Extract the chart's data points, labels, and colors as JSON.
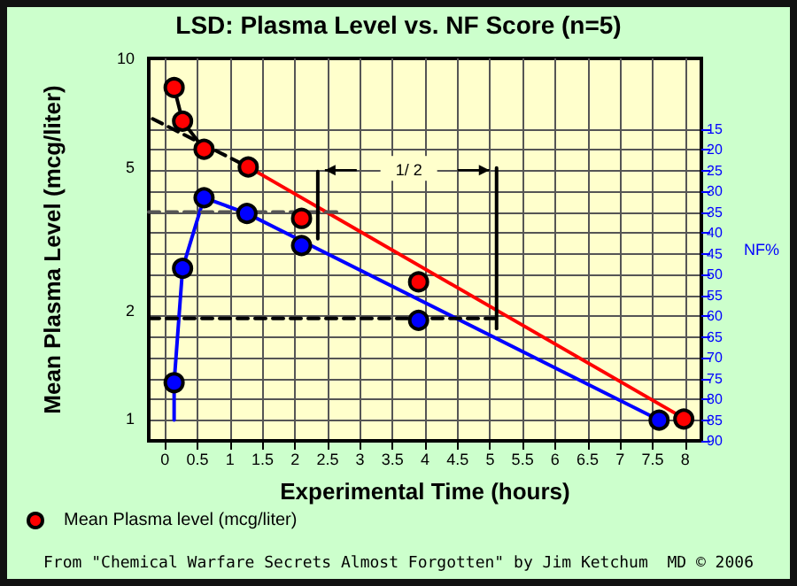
{
  "chart_data": {
    "type": "scatter",
    "title": "LSD: Plasma Level vs. NF Score (n=5)",
    "xlabel": "Experimental Time (hours)",
    "ylabel": "Mean Plasma Level (mcg/liter)",
    "y2label": "NF%",
    "xlim": [
      -0.25,
      8.25
    ],
    "xticks": [
      0,
      0.5,
      1,
      1.5,
      2,
      2.5,
      3,
      3.5,
      4,
      4.5,
      5,
      5.5,
      6,
      6.5,
      7,
      7.5,
      8
    ],
    "ylim": [
      0.87,
      10
    ],
    "yticks": [
      1,
      2,
      5,
      10
    ],
    "log": "y",
    "y2lim": [
      90,
      -2
    ],
    "y2ticks": [
      15,
      20,
      25,
      30,
      35,
      40,
      45,
      50,
      55,
      60,
      65,
      70,
      75,
      80,
      85,
      90
    ],
    "grid": true,
    "legend": "bottom left",
    "series": [
      {
        "name": "Mean Plasma level (mcg/liter)",
        "marker": "circle",
        "color": "#ff0000",
        "x": [
          0.14,
          0.27,
          0.6,
          1.28,
          2.1,
          3.9,
          7.98
        ],
        "values": [
          8.3,
          6.7,
          5.6,
          5.0,
          3.6,
          2.4,
          1.0
        ]
      },
      {
        "type": "line",
        "marker": "none",
        "line_style": "solid",
        "color": "#000000",
        "x": [
          0.14,
          0.27,
          0.6
        ],
        "values": [
          8.3,
          6.7,
          5.6
        ]
      },
      {
        "type": "line",
        "marker": "none",
        "line_style": "dashed",
        "color": "#000000",
        "x": [
          -0.19,
          1.28
        ],
        "values": [
          6.8,
          5.0
        ]
      },
      {
        "type": "line",
        "marker": "none",
        "line_style": "solid",
        "color": "#ff0000",
        "x": [
          1.28,
          8
        ],
        "values": [
          5.0,
          1.0
        ]
      },
      {
        "type": "line",
        "marker": "none",
        "line_style": "solid",
        "color": "#0000ff",
        "axis": "y2",
        "x": [
          0.14,
          0.14,
          0.27,
          0.6,
          1.26,
          7.6
        ],
        "values": [
          85,
          76,
          48.5,
          31.5,
          35.3,
          85
        ]
      },
      {
        "marker": "circle",
        "color": "#0000ff",
        "axis": "y2",
        "x": [
          0.14,
          0.27,
          0.6,
          1.26,
          2.1,
          3.9,
          7.6
        ],
        "values": [
          76,
          48.5,
          31.5,
          35.3,
          43,
          61,
          85
        ]
      },
      {
        "type": "line",
        "marker": "none",
        "line_style": "dashed",
        "color": "#555555",
        "x": [
          -0.25,
          2.7
        ],
        "values": [
          3.75,
          3.75
        ]
      },
      {
        "type": "line",
        "marker": "none",
        "line_style": "dashed",
        "color": "#000000",
        "x": [
          -0.25,
          5.1
        ],
        "values": [
          1.9,
          1.9
        ]
      },
      {
        "type": "line",
        "marker": "none",
        "line_style": "solid",
        "color": "#000000",
        "x": [
          2.35,
          2.35
        ],
        "values": [
          4.86,
          3.16
        ]
      },
      {
        "type": "line",
        "marker": "none",
        "line_style": "solid",
        "color": "#000000",
        "x": [
          5.1,
          5.1
        ],
        "values": [
          4.97,
          1.78
        ]
      }
    ],
    "annotations": [
      {
        "text": "1/ 2",
        "x": 3.75,
        "y": 4.9
      },
      "From \"Chemical Warfare Secrets Almost Forgotten\" by Jim Ketchum  MD © 2006"
    ]
  }
}
